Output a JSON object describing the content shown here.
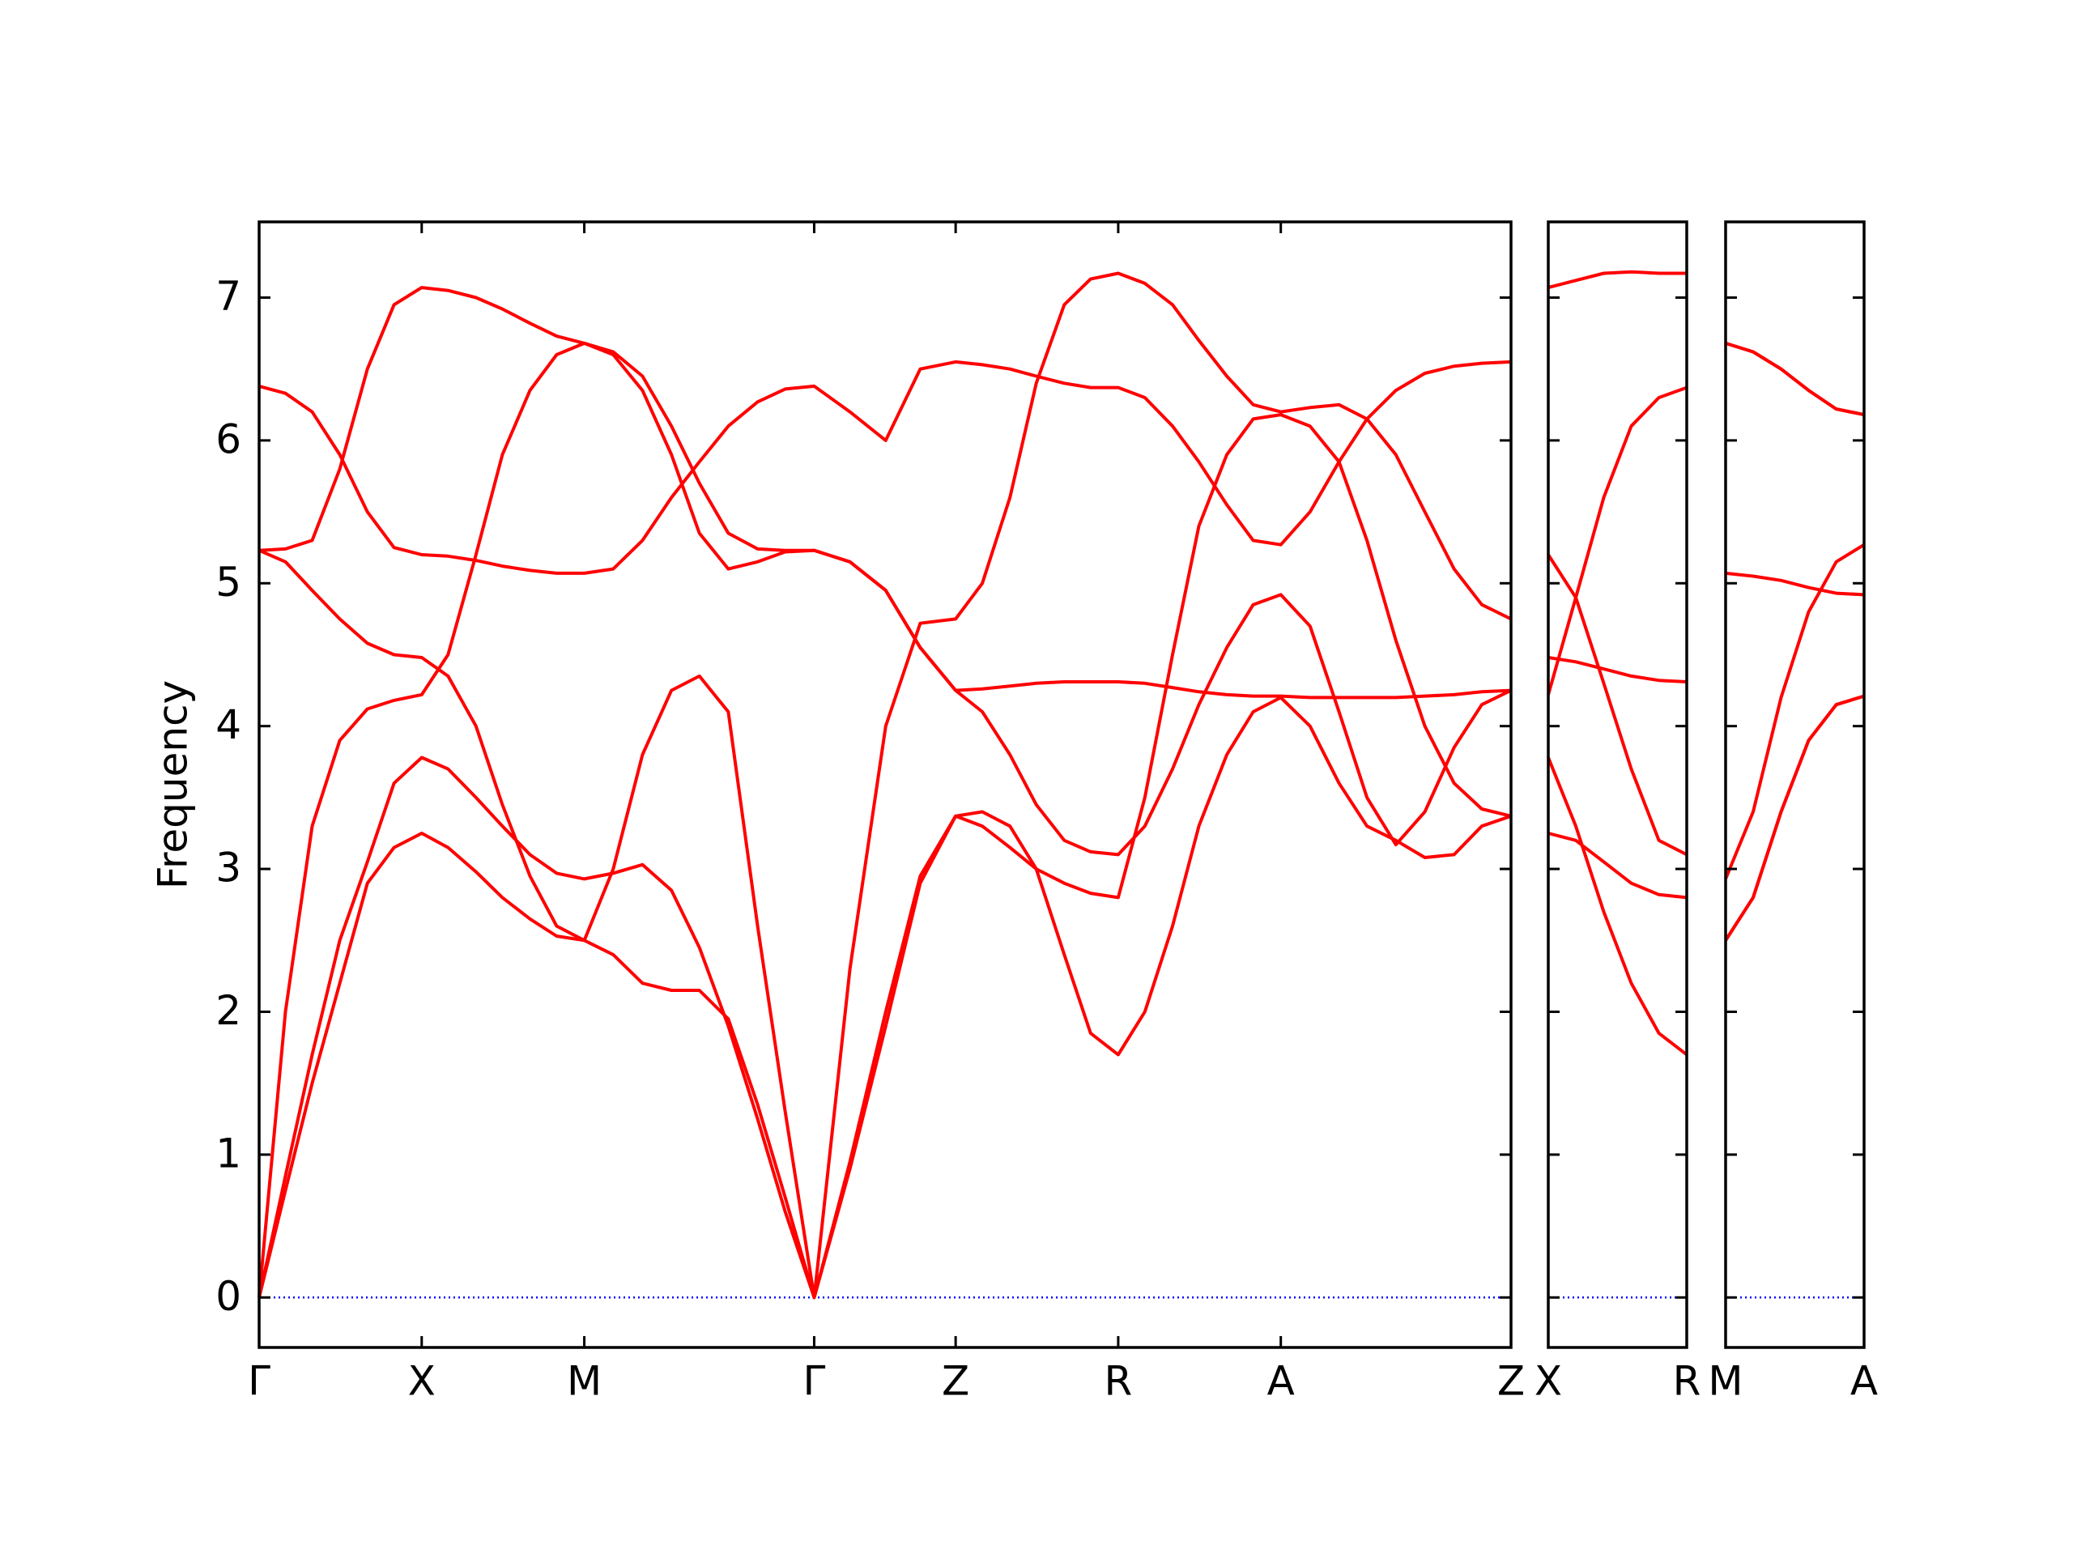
{
  "chart_data": [
    {
      "type": "line",
      "ylabel": "Frequency",
      "x": [
        0,
        0.081,
        0.163,
        0.248,
        0.333,
        0.415,
        0.5,
        0.581,
        0.667,
        0.748,
        0.833,
        0.915,
        1.0,
        1.089,
        1.179,
        1.268,
        1.354,
        1.443,
        1.533,
        1.618,
        1.707,
        1.817,
        1.927,
        2.033,
        2.142,
        2.224,
        2.309,
        2.39,
        2.476,
        2.557,
        2.642,
        2.724,
        2.809,
        2.89,
        2.976,
        3.057,
        3.142,
        3.232,
        3.321,
        3.407,
        3.496,
        3.585,
        3.675,
        3.76,
        3.85
      ],
      "series": [
        {
          "color": "#ff0000",
          "values": [
            0,
            0.75,
            1.5,
            2.2,
            2.9,
            3.15,
            3.25,
            3.15,
            2.98,
            2.8,
            2.65,
            2.53,
            2.5,
            2.4,
            2.2,
            2.15,
            2.15,
            1.95,
            1.35,
            0.7,
            0,
            0.9,
            1.9,
            2.9,
            3.37,
            3.4,
            3.3,
            3.0,
            2.4,
            1.85,
            1.7,
            2.0,
            2.6,
            3.3,
            3.8,
            4.1,
            4.2,
            4.0,
            3.6,
            3.3,
            3.2,
            3.08,
            3.1,
            3.3,
            3.37
          ]
        },
        {
          "color": "#ff0000",
          "values": [
            0,
            0.85,
            1.7,
            2.5,
            3.05,
            3.6,
            3.78,
            3.7,
            3.5,
            3.3,
            3.1,
            2.97,
            2.93,
            2.97,
            3.03,
            2.85,
            2.45,
            1.9,
            1.25,
            0.6,
            0,
            0.95,
            2.0,
            2.95,
            3.37,
            3.3,
            3.15,
            3.0,
            2.9,
            2.83,
            2.8,
            3.5,
            4.5,
            5.4,
            5.9,
            6.15,
            6.18,
            6.1,
            5.85,
            5.3,
            4.6,
            4.0,
            3.6,
            3.42,
            3.37
          ]
        },
        {
          "color": "#ff0000",
          "values": [
            0,
            2.0,
            3.3,
            3.9,
            4.12,
            4.18,
            4.22,
            4.5,
            5.2,
            5.9,
            6.35,
            6.6,
            6.68,
            6.6,
            6.35,
            5.9,
            5.35,
            5.1,
            5.15,
            5.22,
            5.23,
            5.15,
            4.95,
            4.55,
            4.25,
            4.1,
            3.8,
            3.45,
            3.2,
            3.12,
            3.1,
            3.3,
            3.7,
            4.15,
            4.55,
            4.85,
            4.92,
            4.7,
            4.1,
            3.5,
            3.17,
            3.4,
            3.85,
            4.15,
            4.25
          ]
        },
        {
          "color": "#ff0000",
          "values": [
            5.23,
            5.15,
            4.95,
            4.75,
            4.58,
            4.5,
            4.48,
            4.35,
            4.0,
            3.45,
            2.95,
            2.6,
            2.5,
            3.0,
            3.8,
            4.25,
            4.35,
            4.1,
            2.6,
            1.3,
            0,
            2.3,
            4.0,
            4.72,
            4.75,
            5.0,
            5.6,
            6.4,
            6.95,
            7.13,
            7.17,
            7.1,
            6.95,
            6.7,
            6.45,
            6.25,
            6.2,
            6.23,
            6.25,
            6.15,
            5.9,
            5.5,
            5.1,
            4.85,
            4.75
          ]
        },
        {
          "color": "#ff0000",
          "values": [
            6.38,
            6.33,
            6.2,
            5.9,
            5.5,
            5.25,
            5.2,
            5.19,
            5.16,
            5.12,
            5.09,
            5.07,
            5.07,
            5.1,
            5.3,
            5.6,
            5.85,
            6.1,
            6.27,
            6.36,
            6.38,
            6.2,
            6.0,
            6.5,
            6.55,
            6.53,
            6.5,
            6.45,
            6.4,
            6.37,
            6.37,
            6.3,
            6.1,
            5.85,
            5.55,
            5.3,
            5.27,
            5.5,
            5.85,
            6.15,
            6.35,
            6.47,
            6.52,
            6.54,
            6.55
          ]
        },
        {
          "color": "#ff0000",
          "values": [
            5.23,
            5.24,
            5.3,
            5.8,
            6.5,
            6.95,
            7.07,
            7.05,
            7.0,
            6.92,
            6.82,
            6.73,
            6.68,
            6.62,
            6.45,
            6.1,
            5.7,
            5.35,
            5.24,
            5.23,
            5.23,
            5.15,
            4.95,
            4.55,
            4.25,
            4.26,
            4.28,
            4.3,
            4.31,
            4.31,
            4.31,
            4.3,
            4.27,
            4.24,
            4.22,
            4.21,
            4.21,
            4.2,
            4.2,
            4.2,
            4.2,
            4.21,
            4.22,
            4.24,
            4.25
          ]
        }
      ],
      "xlim": [
        0,
        3.85
      ],
      "xticks": [
        {
          "value": 0,
          "label": "Γ"
        },
        {
          "value": 0.5,
          "label": "X"
        },
        {
          "value": 1.0,
          "label": "M"
        },
        {
          "value": 1.707,
          "label": "Γ"
        },
        {
          "value": 2.142,
          "label": "Z"
        },
        {
          "value": 2.642,
          "label": "R"
        },
        {
          "value": 3.142,
          "label": "A"
        },
        {
          "value": 3.85,
          "label": "Z"
        }
      ],
      "ylim": [
        -0.35,
        7.53
      ],
      "yticks": [
        0,
        1,
        2,
        3,
        4,
        5,
        6,
        7
      ],
      "show_ytick_labels": true,
      "hline": {
        "y": 0,
        "color": "#0000ff",
        "style": "dotted"
      }
    },
    {
      "type": "line",
      "x": [
        0,
        0.085,
        0.171,
        0.256,
        0.341,
        0.427
      ],
      "series": [
        {
          "color": "#ff0000",
          "values": [
            7.07,
            7.12,
            7.17,
            7.18,
            7.17,
            7.17
          ]
        },
        {
          "color": "#ff0000",
          "values": [
            4.22,
            4.9,
            5.6,
            6.1,
            6.3,
            6.37
          ]
        },
        {
          "color": "#ff0000",
          "values": [
            5.2,
            4.9,
            4.3,
            3.7,
            3.2,
            3.1
          ]
        },
        {
          "color": "#ff0000",
          "values": [
            4.48,
            4.45,
            4.4,
            4.35,
            4.32,
            4.31
          ]
        },
        {
          "color": "#ff0000",
          "values": [
            3.78,
            3.3,
            2.7,
            2.2,
            1.85,
            1.7
          ]
        },
        {
          "color": "#ff0000",
          "values": [
            3.25,
            3.2,
            3.05,
            2.9,
            2.82,
            2.8
          ]
        }
      ],
      "xlim": [
        0,
        0.427
      ],
      "xticks": [
        {
          "value": 0,
          "label": "X"
        },
        {
          "value": 0.427,
          "label": "R"
        }
      ],
      "ylim": [
        -0.35,
        7.53
      ],
      "yticks": [
        0,
        1,
        2,
        3,
        4,
        5,
        6,
        7
      ],
      "show_ytick_labels": false,
      "hline": {
        "y": 0,
        "color": "#0000ff",
        "style": "dotted"
      }
    },
    {
      "type": "line",
      "x": [
        0,
        0.085,
        0.171,
        0.256,
        0.341,
        0.427
      ],
      "series": [
        {
          "color": "#ff0000",
          "values": [
            6.68,
            6.62,
            6.5,
            6.35,
            6.22,
            6.18
          ]
        },
        {
          "color": "#ff0000",
          "values": [
            6.68,
            6.62,
            6.5,
            6.35,
            6.22,
            6.18
          ]
        },
        {
          "color": "#ff0000",
          "values": [
            5.07,
            5.05,
            5.02,
            4.97,
            4.93,
            4.92
          ]
        },
        {
          "color": "#ff0000",
          "values": [
            2.93,
            3.4,
            4.2,
            4.8,
            5.15,
            5.27
          ]
        },
        {
          "color": "#ff0000",
          "values": [
            2.5,
            2.8,
            3.4,
            3.9,
            4.15,
            4.21
          ]
        },
        {
          "color": "#ff0000",
          "values": [
            2.5,
            2.8,
            3.4,
            3.9,
            4.15,
            4.21
          ]
        }
      ],
      "xlim": [
        0,
        0.427
      ],
      "xticks": [
        {
          "value": 0,
          "label": "M"
        },
        {
          "value": 0.427,
          "label": "A"
        }
      ],
      "ylim": [
        -0.35,
        7.53
      ],
      "yticks": [
        0,
        1,
        2,
        3,
        4,
        5,
        6,
        7
      ],
      "show_ytick_labels": false,
      "hline": {
        "y": 0,
        "color": "#0000ff",
        "style": "dotted"
      }
    }
  ]
}
